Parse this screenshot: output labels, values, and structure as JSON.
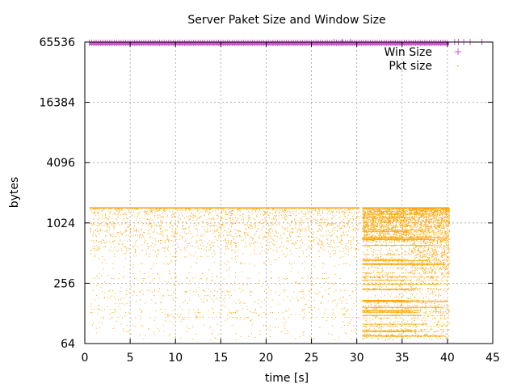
{
  "chart_data": {
    "type": "scatter",
    "title": "Server Paket Size and Window Size",
    "xlabel": "time [s]",
    "ylabel": "bytes",
    "xlim": [
      0,
      45
    ],
    "ylim": [
      64,
      65536
    ],
    "y_scale": "log2",
    "x_ticks": [
      0,
      5,
      10,
      15,
      20,
      25,
      30,
      35,
      40,
      45
    ],
    "y_ticks": [
      64,
      256,
      1024,
      4096,
      16384,
      65536
    ],
    "grid": true,
    "legend_position": "top-right",
    "series": [
      {
        "name": "Win Size",
        "marker": "+",
        "color": "#cc55cc",
        "dense_segment": {
          "x_start": 0.5,
          "x_end": 40.2,
          "y": 64240,
          "y_band": [
            61000,
            65535
          ]
        },
        "points": [
          {
            "x": 27.5,
            "y": 65535
          },
          {
            "x": 28.4,
            "y": 65535
          },
          {
            "x": 29.3,
            "y": 65535
          },
          {
            "x": 40.8,
            "y": 65535
          },
          {
            "x": 41.2,
            "y": 65535
          },
          {
            "x": 41.8,
            "y": 65535
          },
          {
            "x": 42.5,
            "y": 65535
          },
          {
            "x": 43.8,
            "y": 65535
          }
        ]
      },
      {
        "name": "Pkt size",
        "marker": "dot",
        "color": "#ffa500",
        "clusters": [
          {
            "x_range": [
              0.5,
              30.3
            ],
            "y_range": [
              70,
              1448
            ],
            "density": "moderate"
          },
          {
            "x_range": [
              30.6,
              40.2
            ],
            "y_range": [
              70,
              1448
            ],
            "density": "high"
          }
        ],
        "max_value": 1448,
        "min_value": 70
      }
    ]
  }
}
